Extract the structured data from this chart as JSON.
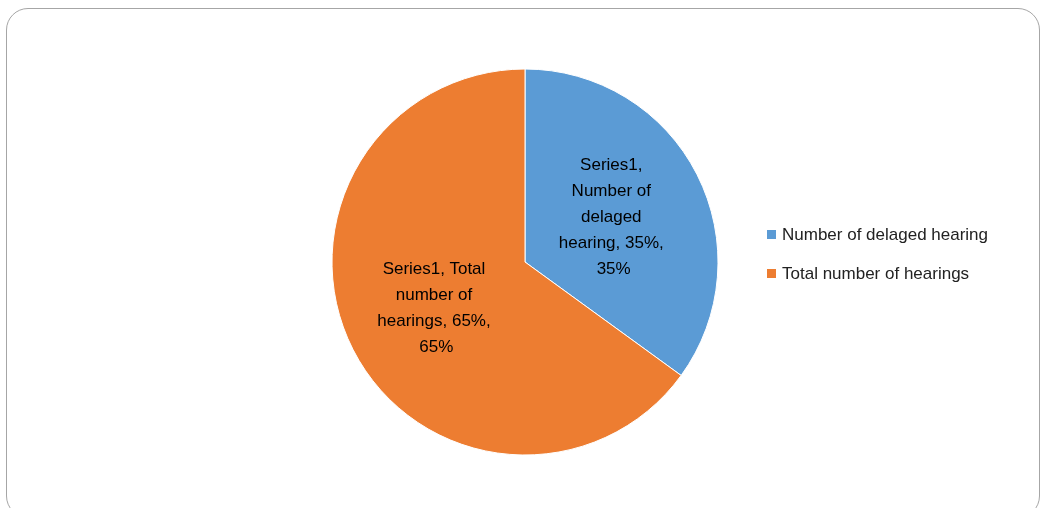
{
  "chart_data": {
    "type": "pie",
    "categories": [
      "Number of delaged hearing",
      "Total number of hearings"
    ],
    "values": [
      35,
      65
    ],
    "colors": [
      "#5b9bd5",
      "#ed7d31"
    ],
    "value_labels": [
      "Series1, Number of delaged hearing, 35%, 35%",
      "Series1, Total number of hearings, 65%, 65%"
    ],
    "legend": "right"
  }
}
